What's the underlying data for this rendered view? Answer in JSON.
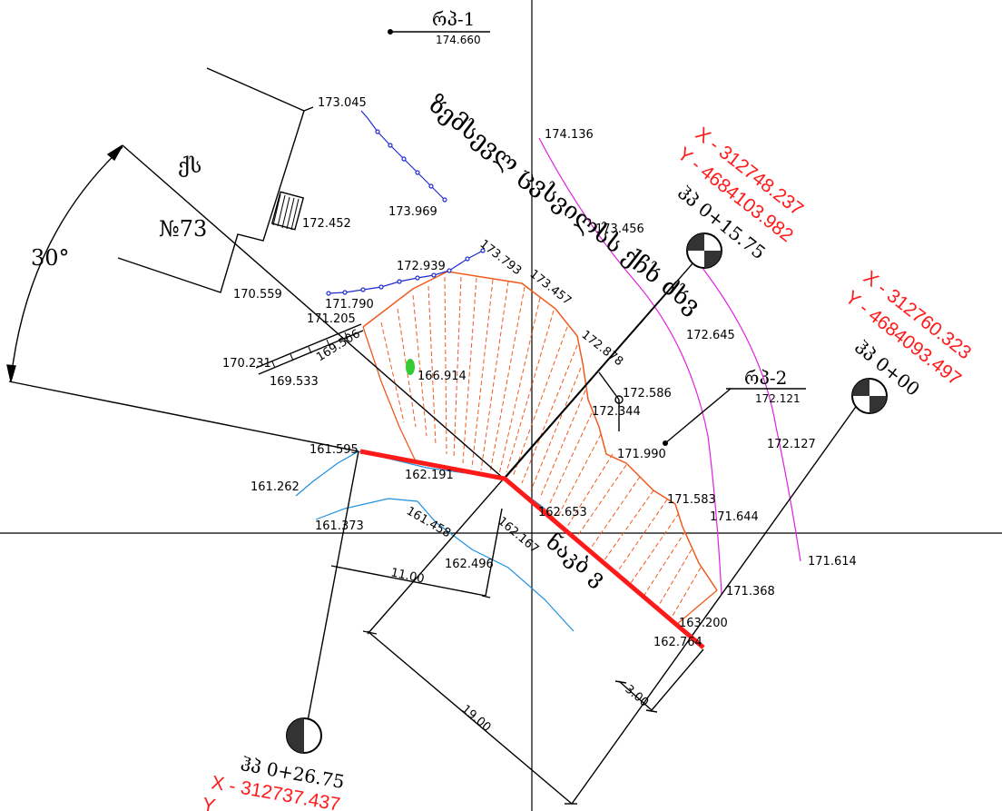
{
  "colors": {
    "ink": "#000000",
    "red": "#ff1a1a",
    "orange": "#f05a1e",
    "blue": "#1f2bd0",
    "cyan": "#1e90e0",
    "magenta": "#e020e0",
    "green": "#33cc33"
  },
  "benchmarks": [
    {
      "label": "რპ-1",
      "value": "174.660"
    },
    {
      "label": "რპ-2",
      "value": "172.121"
    }
  ],
  "building": {
    "district": "ქს",
    "number": "№73"
  },
  "angle": "30°",
  "street_label": "ზემსევლ ცვსვილსს ქჩხ ძხვ",
  "river_label": "ნაკბ ვ",
  "pickets": [
    {
      "name": "ჰპ 0+00",
      "x": "X - 312760.323",
      "y": "Y - 4684093.497"
    },
    {
      "name": "ჰპ 0+15.75",
      "x": "X - 312748.237",
      "y": "Y - 4684103.982"
    },
    {
      "name": "ჰპ 0+26.75",
      "x": "X - 312737.437",
      "y": "Y"
    }
  ],
  "dimensions": [
    "11.00",
    "19.00",
    "3.00"
  ],
  "elevations": [
    "173.045",
    "172.452",
    "173.969",
    "174.136",
    "173.456",
    "173.793",
    "173.457",
    "172.939",
    "171.790",
    "171.205",
    "169.506",
    "170.559",
    "170.231",
    "169.533",
    "166.914",
    "172.878",
    "172.586",
    "172.344",
    "172.645",
    "171.990",
    "172.127",
    "161.595",
    "162.191",
    "161.262",
    "161.373",
    "161.458",
    "162.167",
    "162.653",
    "162.496",
    "171.583",
    "171.644",
    "171.614",
    "171.368",
    "163.200",
    "162.764"
  ]
}
